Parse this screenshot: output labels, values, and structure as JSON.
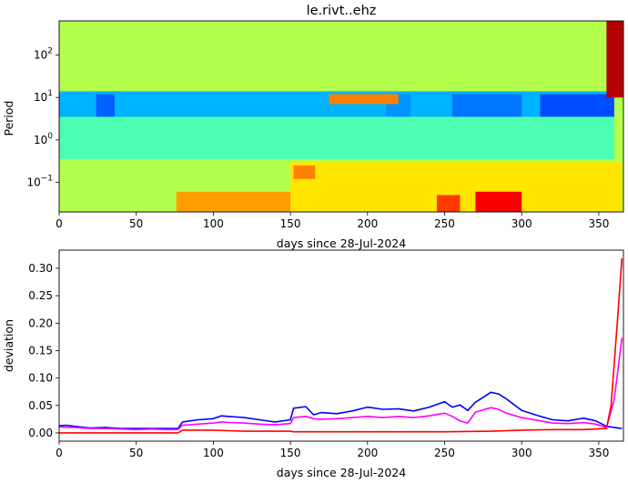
{
  "chart_data": [
    {
      "type": "heatmap",
      "title": "le.rivt..ehz",
      "xlabel": "days since 28-Jul-2024",
      "ylabel": "Period",
      "xlim": [
        0,
        366
      ],
      "ylim": [
        0.02,
        640
      ],
      "yscale": "log",
      "xticks": [
        0,
        50,
        100,
        150,
        200,
        250,
        300,
        350
      ],
      "yticks": [
        {
          "value": 100,
          "base": "10",
          "exp": "2"
        },
        {
          "value": 10,
          "base": "10",
          "exp": "1"
        },
        {
          "value": 1,
          "base": "10",
          "exp": "0"
        },
        {
          "value": 0.1,
          "base": "10",
          "exp": "−1"
        }
      ],
      "colormap": "jet",
      "background_level": 0.55,
      "bands": [
        {
          "x0": 0,
          "x1": 360,
          "y0": 3.5,
          "y1": 14,
          "level": 0.3
        },
        {
          "x0": 24,
          "x1": 36,
          "y0": 3.5,
          "y1": 12,
          "level": 0.22
        },
        {
          "x0": 212,
          "x1": 228,
          "y0": 3.5,
          "y1": 12,
          "level": 0.27
        },
        {
          "x0": 255,
          "x1": 300,
          "y0": 3.5,
          "y1": 12,
          "level": 0.24
        },
        {
          "x0": 312,
          "x1": 360,
          "y0": 3.5,
          "y1": 12,
          "level": 0.2
        },
        {
          "x0": 175,
          "x1": 220,
          "y0": 7,
          "y1": 12,
          "level": 0.75
        },
        {
          "x0": 0,
          "x1": 360,
          "y0": 0.35,
          "y1": 3.5,
          "level": 0.45
        },
        {
          "x0": 76,
          "x1": 365,
          "y0": 0.02,
          "y1": 0.06,
          "level": 0.72
        },
        {
          "x0": 150,
          "x1": 365,
          "y0": 0.02,
          "y1": 0.3,
          "level": 0.65
        },
        {
          "x0": 152,
          "x1": 166,
          "y0": 0.12,
          "y1": 0.25,
          "level": 0.75
        },
        {
          "x0": 245,
          "x1": 260,
          "y0": 0.02,
          "y1": 0.05,
          "level": 0.82
        },
        {
          "x0": 270,
          "x1": 300,
          "y0": 0.02,
          "y1": 0.06,
          "level": 0.88
        },
        {
          "x0": 355,
          "x1": 366,
          "y0": 10,
          "y1": 640,
          "level": 0.95
        }
      ]
    },
    {
      "type": "line",
      "title": "",
      "xlabel": "days since 28-Jul-2024",
      "ylabel": "deviation",
      "xlim": [
        0,
        366
      ],
      "ylim": [
        -0.015,
        0.333
      ],
      "xticks": [
        0,
        50,
        100,
        150,
        200,
        250,
        300,
        350
      ],
      "yticks": [
        0.0,
        0.05,
        0.1,
        0.15,
        0.2,
        0.25,
        0.3
      ],
      "ytick_labels": [
        "0.00",
        "0.05",
        "0.10",
        "0.15",
        "0.20",
        "0.25",
        "0.30"
      ],
      "series": [
        {
          "color": "#0000ff",
          "x": [
            0,
            5,
            10,
            20,
            30,
            40,
            50,
            60,
            70,
            77,
            80,
            90,
            100,
            105,
            110,
            120,
            130,
            140,
            150,
            152,
            160,
            165,
            170,
            180,
            190,
            200,
            210,
            220,
            230,
            240,
            250,
            255,
            260,
            265,
            270,
            280,
            285,
            290,
            300,
            310,
            320,
            330,
            340,
            348,
            355,
            360,
            365
          ],
          "y": [
            0.013,
            0.014,
            0.012,
            0.009,
            0.01,
            0.008,
            0.008,
            0.008,
            0.008,
            0.008,
            0.02,
            0.024,
            0.026,
            0.031,
            0.03,
            0.028,
            0.024,
            0.02,
            0.024,
            0.045,
            0.048,
            0.033,
            0.037,
            0.035,
            0.04,
            0.047,
            0.043,
            0.044,
            0.04,
            0.047,
            0.057,
            0.047,
            0.051,
            0.041,
            0.056,
            0.074,
            0.071,
            0.062,
            0.041,
            0.032,
            0.024,
            0.022,
            0.027,
            0.022,
            0.012,
            0.01,
            0.008
          ]
        },
        {
          "color": "#ff00ff",
          "x": [
            0,
            10,
            20,
            30,
            40,
            50,
            60,
            70,
            77,
            80,
            90,
            100,
            105,
            110,
            120,
            130,
            140,
            150,
            152,
            160,
            165,
            170,
            180,
            190,
            200,
            210,
            220,
            230,
            240,
            250,
            255,
            260,
            265,
            270,
            280,
            285,
            290,
            300,
            310,
            320,
            330,
            340,
            348,
            355,
            360,
            365
          ],
          "y": [
            0.011,
            0.01,
            0.008,
            0.008,
            0.007,
            0.006,
            0.007,
            0.006,
            0.006,
            0.014,
            0.016,
            0.018,
            0.02,
            0.019,
            0.018,
            0.016,
            0.015,
            0.017,
            0.028,
            0.03,
            0.026,
            0.025,
            0.026,
            0.028,
            0.03,
            0.028,
            0.03,
            0.028,
            0.031,
            0.036,
            0.03,
            0.022,
            0.018,
            0.038,
            0.046,
            0.043,
            0.036,
            0.028,
            0.023,
            0.018,
            0.017,
            0.019,
            0.016,
            0.01,
            0.06,
            0.173
          ]
        },
        {
          "color": "#ff0000",
          "x": [
            0,
            20,
            40,
            60,
            77,
            80,
            100,
            120,
            150,
            152,
            200,
            250,
            280,
            300,
            320,
            340,
            355,
            358,
            362,
            365
          ],
          "y": [
            0.0,
            0.0,
            0.0,
            0.0,
            0.0,
            0.005,
            0.005,
            0.003,
            0.003,
            0.002,
            0.002,
            0.002,
            0.003,
            0.005,
            0.006,
            0.006,
            0.008,
            0.05,
            0.2,
            0.318
          ]
        }
      ]
    }
  ]
}
